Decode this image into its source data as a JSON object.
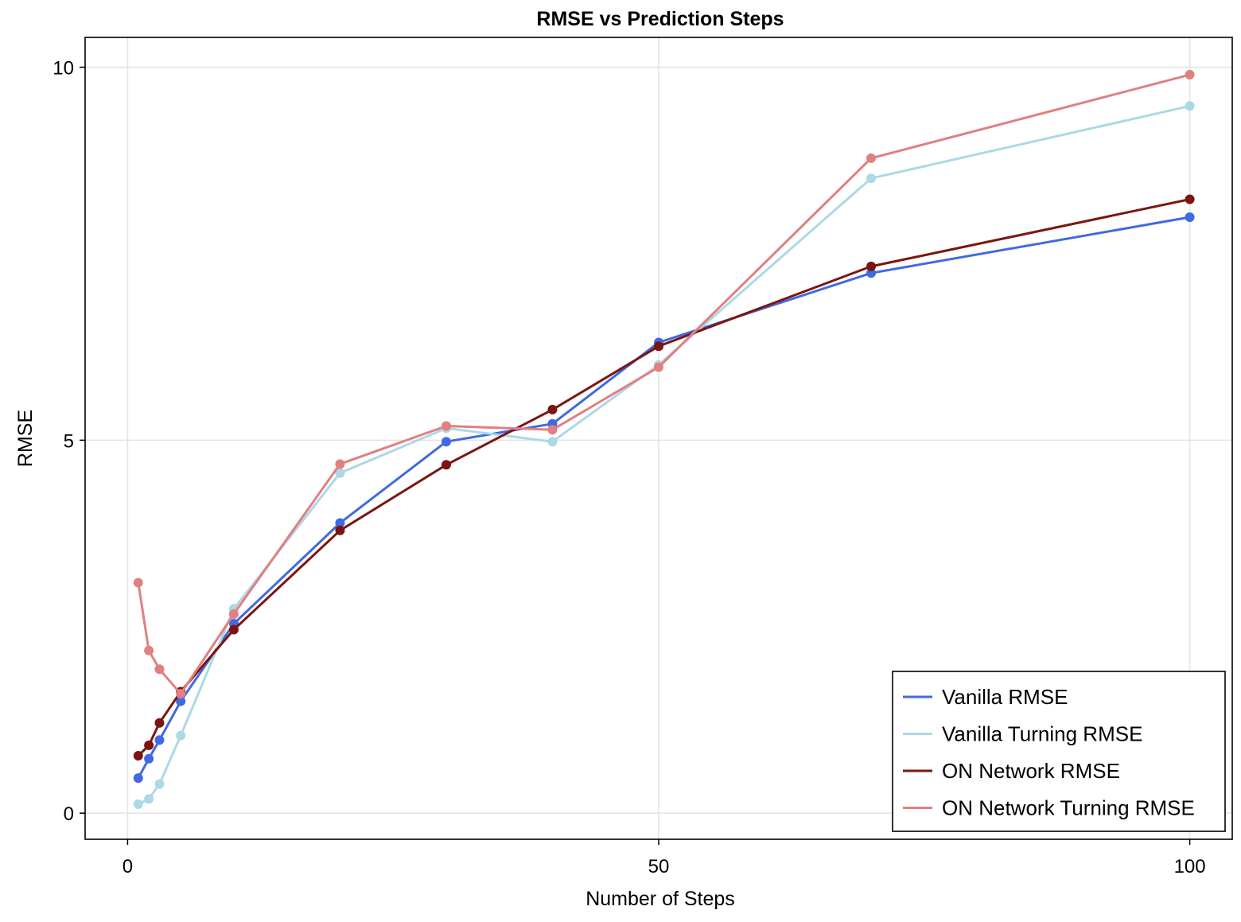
{
  "chart_data": {
    "type": "line",
    "title": "RMSE vs Prediction Steps",
    "xlabel": "Number of Steps",
    "ylabel": "RMSE",
    "xlim": [
      -4,
      104
    ],
    "ylim": [
      -0.35,
      10.4
    ],
    "xticks": [
      0,
      50,
      100
    ],
    "xtick_labels": [
      "0",
      "50",
      "100"
    ],
    "yticks": [
      0,
      5,
      10
    ],
    "ytick_labels": [
      "0",
      "5",
      "10"
    ],
    "grid": true,
    "legend_position": "bottom-right",
    "x": [
      1,
      2,
      3,
      5,
      10,
      20,
      30,
      40,
      50,
      70,
      100
    ],
    "series": [
      {
        "name": "Vanilla RMSE",
        "color": "#4169e1",
        "values": [
          0.47,
          0.73,
          0.98,
          1.5,
          2.54,
          3.89,
          4.98,
          5.22,
          6.31,
          7.24,
          7.99
        ]
      },
      {
        "name": "Vanilla Turning RMSE",
        "color": "#add8e6",
        "values": [
          0.12,
          0.19,
          0.39,
          1.04,
          2.74,
          4.56,
          5.16,
          4.98,
          6.01,
          8.51,
          9.48
        ]
      },
      {
        "name": "ON Network RMSE",
        "color": "#7b1511",
        "values": [
          0.77,
          0.91,
          1.21,
          1.63,
          2.46,
          3.79,
          4.67,
          5.41,
          6.26,
          7.33,
          8.23
        ]
      },
      {
        "name": "ON Network Turning RMSE",
        "color": "#e08080",
        "values": [
          3.09,
          2.18,
          1.93,
          1.6,
          2.67,
          4.68,
          5.19,
          5.14,
          5.98,
          8.78,
          9.9
        ]
      }
    ]
  }
}
